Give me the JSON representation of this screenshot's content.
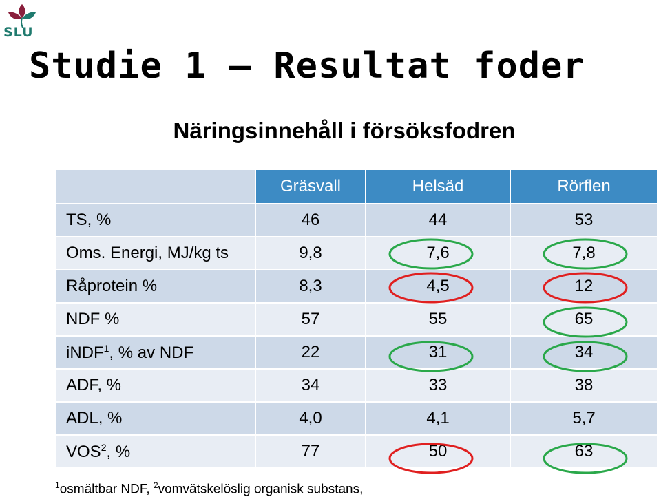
{
  "logo": {
    "text": "SLU",
    "color": "#1f7a6e"
  },
  "title": "Studie 1 – Resultat foder",
  "subtitle": "Näringsinnehåll i försöksfodren",
  "table": {
    "headers": [
      "",
      "Gräsvall",
      "Helsäd",
      "Rörflen"
    ],
    "rows": [
      {
        "label": "TS, %",
        "sup": "",
        "label_rest": "",
        "values": [
          "46",
          "44",
          "53"
        ]
      },
      {
        "label": "Oms. Energi, MJ/kg ts",
        "sup": "",
        "label_rest": "",
        "values": [
          "9,8",
          "7,6",
          "7,8"
        ]
      },
      {
        "label": "Råprotein %",
        "sup": "",
        "label_rest": "",
        "values": [
          "8,3",
          "4,5",
          "12"
        ]
      },
      {
        "label": "NDF %",
        "sup": "",
        "label_rest": "",
        "values": [
          "57",
          "55",
          "65"
        ]
      },
      {
        "label": "iNDF",
        "sup": "1",
        "label_rest": ", % av NDF",
        "values": [
          "22",
          "31",
          "34"
        ]
      },
      {
        "label": "ADF, %",
        "sup": "",
        "label_rest": "",
        "values": [
          "34",
          "33",
          "38"
        ]
      },
      {
        "label": "ADL, %",
        "sup": "",
        "label_rest": "",
        "values": [
          "4,0",
          "4,1",
          "5,7"
        ]
      },
      {
        "label": "VOS",
        "sup": "2",
        "label_rest": ", %",
        "values": [
          "77",
          "50",
          "63"
        ]
      }
    ]
  },
  "colors": {
    "header": "#3d8bc4",
    "row_odd": "#cdd9e8",
    "row_even": "#e8edf4",
    "oval_green": "#2aa84a",
    "oval_red": "#e02020"
  },
  "footnote": {
    "sup1": "1",
    "text1": "osmältbar NDF, ",
    "sup2": "2",
    "text2": "vomvätskelöslig organisk substans,"
  }
}
